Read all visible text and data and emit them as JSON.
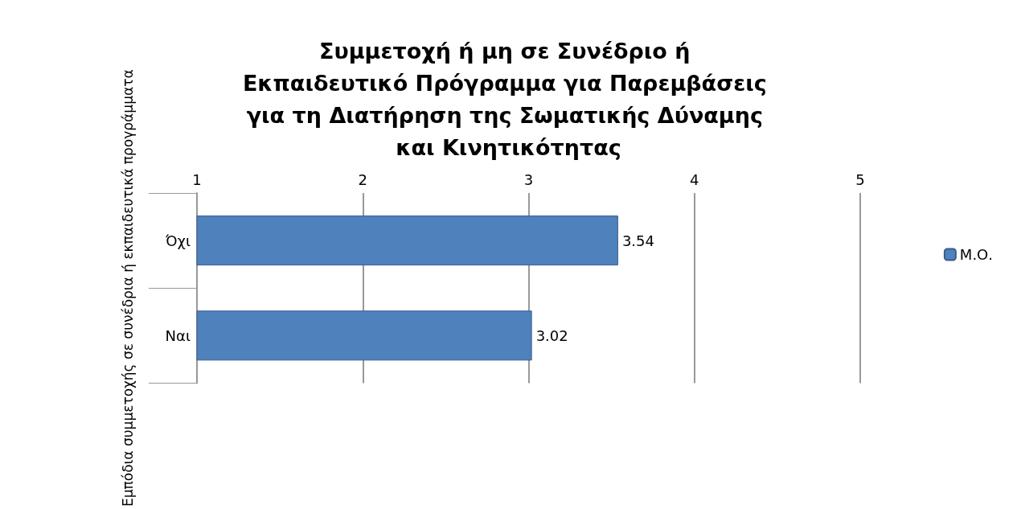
{
  "chart_data": {
    "type": "bar",
    "orientation": "horizontal",
    "title": "Συμμετοχή ή μη σε Συνέδριο ή Εκπαιδευτικό Πρόγραμμα για Παρεμβάσεις για τη Διατήρηση της Σωματικής Δύναμης και Κινητικότητας",
    "ylabel": "Εμπόδια συμμετοχής σε συνέδρια ή εκπαιδευτικά προγράμματα",
    "categories": [
      "Όχι",
      "Ναι"
    ],
    "series": [
      {
        "name": "Μ.Ο.",
        "color": "#4f81bd",
        "values": [
          3.54,
          3.02
        ]
      }
    ],
    "xlim": [
      1,
      5
    ],
    "xticks": [
      1,
      2,
      3,
      4,
      5
    ],
    "grid": "x",
    "legend": "right",
    "data_labels": true
  }
}
